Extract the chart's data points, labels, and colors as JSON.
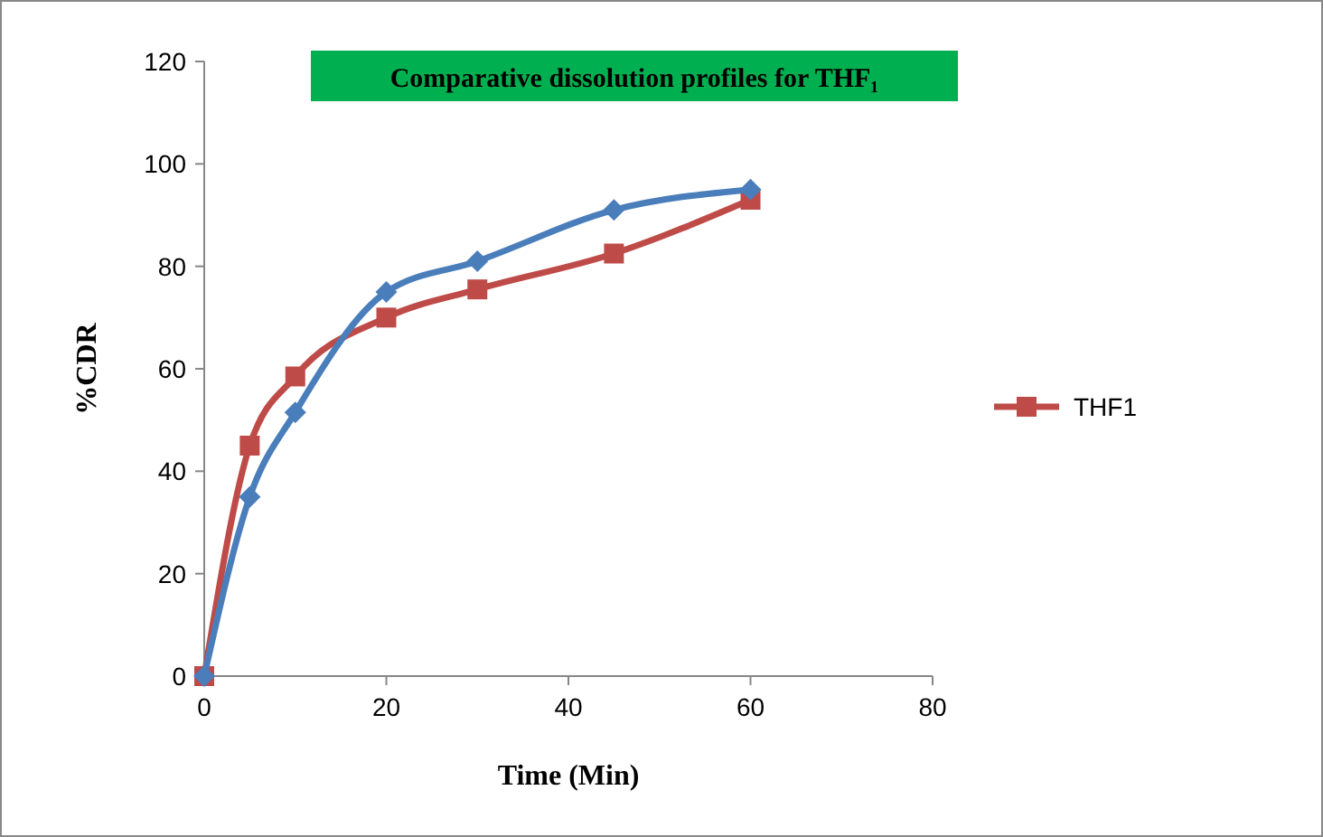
{
  "chart_data": {
    "type": "line",
    "title": "Comparative  dissolution profiles for THF₁",
    "xlabel": "Time (Min)",
    "ylabel": "%CDR",
    "x": [
      0,
      5,
      10,
      20,
      30,
      45,
      60
    ],
    "series": [
      {
        "color": "#4a7ebb",
        "marker": "diamond",
        "values": [
          0,
          35,
          51.5,
          75,
          81,
          91,
          95
        ]
      },
      {
        "name": "THF1",
        "color": "#be4b48",
        "marker": "square",
        "values": [
          0,
          45,
          58.5,
          70,
          75.5,
          82.5,
          93
        ]
      }
    ],
    "xlim": [
      0,
      80
    ],
    "xticks": [
      0,
      20,
      40,
      60,
      80
    ],
    "ylim": [
      0,
      120
    ],
    "yticks": [
      0,
      20,
      40,
      60,
      80,
      100,
      120
    ],
    "grid": false,
    "legend": "right",
    "line_style": "solid"
  }
}
